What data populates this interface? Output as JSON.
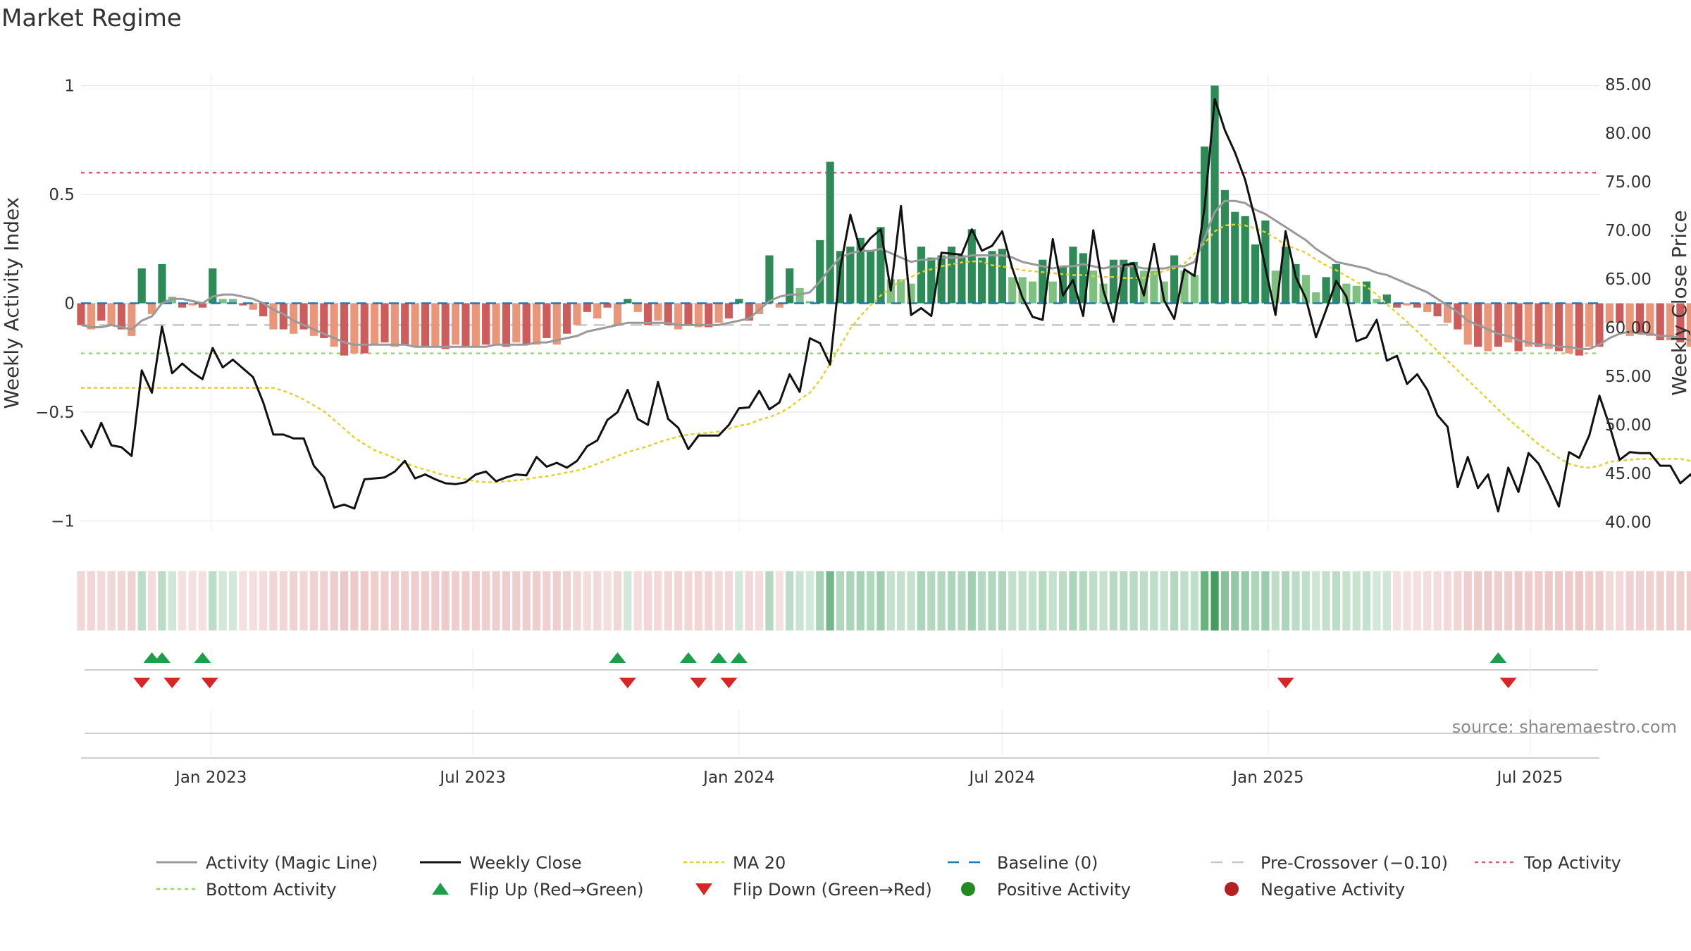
{
  "title": "Market Regime",
  "source": "source: sharemaestro.com",
  "colors": {
    "pos_dark": "#2e8b57",
    "pos_light": "#7fbf7f",
    "neg_dark": "#cd5c5c",
    "neg_light": "#e9967a",
    "magic_line": "#999999",
    "close_line": "#111111",
    "ma20": "#e6d030",
    "baseline": "#1f77b4",
    "pre_crossover": "#c8c8c8",
    "top_activity": "#e05a78",
    "bottom_activity": "#9ad66a",
    "flip_up": "#1f9e4a",
    "flip_down": "#d62728",
    "positive_dot": "#228b22",
    "negative_dot": "#b22222",
    "grid": "#e8e8e8"
  },
  "legend": [
    {
      "key": "magic",
      "label": "Activity (Magic Line)"
    },
    {
      "key": "close",
      "label": "Weekly Close"
    },
    {
      "key": "ma20",
      "label": "MA 20"
    },
    {
      "key": "baseline",
      "label": "Baseline (0)"
    },
    {
      "key": "pre",
      "label": "Pre-Crossover (−0.10)"
    },
    {
      "key": "top",
      "label": "Top Activity"
    },
    {
      "key": "bottom",
      "label": "Bottom Activity"
    },
    {
      "key": "flipup",
      "label": "Flip Up (Red→Green)"
    },
    {
      "key": "flipdown",
      "label": "Flip Down (Green→Red)"
    },
    {
      "key": "posdot",
      "label": "Positive Activity"
    },
    {
      "key": "negdot",
      "label": "Negative Activity"
    }
  ],
  "chart_data": {
    "type": "bar",
    "title": "Market Regime",
    "ylabel_left": "Weekly Activity Index",
    "ylabel_right": "Weekly Close Price",
    "ylim_left": [
      -1.05,
      1.05
    ],
    "ylim_right": [
      39.0,
      86.0
    ],
    "yticks_left": [
      1,
      0.5,
      0,
      -0.5,
      -1
    ],
    "yticks_left_labels": [
      "1",
      "0.5",
      "0",
      "−0.5",
      "−1"
    ],
    "yticks_right": [
      85,
      80,
      75,
      70,
      65,
      60,
      55,
      50,
      45,
      40
    ],
    "yticks_right_labels": [
      "85.00",
      "80.00",
      "75.00",
      "70.00",
      "65.00",
      "60.00",
      "55.00",
      "50.00",
      "45.00",
      "40.00"
    ],
    "x_range": [
      "2022-10-03",
      "2025-08-18"
    ],
    "x_ticks": [
      {
        "date": "2023-01-01",
        "label": "Jan 2023"
      },
      {
        "date": "2023-07-01",
        "label": "Jul 2023"
      },
      {
        "date": "2024-01-01",
        "label": "Jan 2024"
      },
      {
        "date": "2024-07-01",
        "label": "Jul 2024"
      },
      {
        "date": "2025-01-01",
        "label": "Jan 2025"
      },
      {
        "date": "2025-07-01",
        "label": "Jul 2025"
      }
    ],
    "first_week": "2022-10-03",
    "reference_lines": {
      "baseline": 0,
      "pre_crossover": -0.1,
      "top_activity": 0.6,
      "bottom_activity": -0.23
    },
    "activity": [
      -0.1,
      -0.12,
      -0.08,
      -0.1,
      -0.12,
      -0.15,
      0.16,
      -0.05,
      0.18,
      0.03,
      -0.02,
      -0.01,
      -0.02,
      0.16,
      0.02,
      0.02,
      -0.01,
      -0.03,
      -0.06,
      -0.12,
      -0.12,
      -0.14,
      -0.12,
      -0.15,
      -0.16,
      -0.2,
      -0.24,
      -0.23,
      -0.23,
      -0.19,
      -0.18,
      -0.2,
      -0.19,
      -0.2,
      -0.2,
      -0.2,
      -0.21,
      -0.19,
      -0.2,
      -0.2,
      -0.19,
      -0.19,
      -0.2,
      -0.18,
      -0.19,
      -0.19,
      -0.16,
      -0.19,
      -0.14,
      -0.1,
      -0.04,
      -0.07,
      -0.02,
      -0.1,
      0.02,
      -0.04,
      -0.1,
      -0.08,
      -0.1,
      -0.12,
      -0.1,
      -0.11,
      -0.11,
      -0.09,
      -0.07,
      0.02,
      -0.08,
      -0.05,
      0.22,
      -0.02,
      0.16,
      0.07,
      0.01,
      0.29,
      0.65,
      0.24,
      0.26,
      0.3,
      0.24,
      0.35,
      0.11,
      0.11,
      0.09,
      0.26,
      0.21,
      0.22,
      0.26,
      0.22,
      0.34,
      0.21,
      0.24,
      0.25,
      0.12,
      0.12,
      0.1,
      0.2,
      0.1,
      0.17,
      0.26,
      0.23,
      0.15,
      0.09,
      0.2,
      0.2,
      0.19,
      0.15,
      0.15,
      0.1,
      0.22,
      0.15,
      0.13,
      0.72,
      1.0,
      0.52,
      0.42,
      0.4,
      0.27,
      0.38,
      0.15,
      0.26,
      0.18,
      0.13,
      0.05,
      0.12,
      0.18,
      0.09,
      0.08,
      0.1,
      0.02,
      0.04,
      -0.02,
      -0.01,
      -0.02,
      -0.04,
      -0.06,
      -0.09,
      -0.12,
      -0.19,
      -0.2,
      -0.22,
      -0.2,
      -0.18,
      -0.22,
      -0.2,
      -0.2,
      -0.21,
      -0.22,
      -0.23,
      -0.24,
      -0.2,
      -0.2,
      -0.09,
      -0.09,
      -0.15,
      -0.14,
      -0.15,
      -0.17,
      -0.17,
      -0.18,
      -0.2,
      -0.19,
      -0.2,
      -0.19,
      -0.2,
      -0.22,
      -0.2
    ],
    "magic_line": [
      -0.1,
      -0.11,
      -0.11,
      -0.1,
      -0.11,
      -0.12,
      -0.08,
      -0.06,
      0.0,
      0.02,
      0.02,
      0.01,
      0.0,
      0.03,
      0.04,
      0.04,
      0.03,
      0.02,
      0.0,
      -0.03,
      -0.05,
      -0.08,
      -0.1,
      -0.12,
      -0.14,
      -0.16,
      -0.18,
      -0.19,
      -0.19,
      -0.19,
      -0.19,
      -0.19,
      -0.19,
      -0.2,
      -0.2,
      -0.2,
      -0.2,
      -0.2,
      -0.2,
      -0.2,
      -0.2,
      -0.19,
      -0.19,
      -0.19,
      -0.19,
      -0.18,
      -0.18,
      -0.17,
      -0.16,
      -0.15,
      -0.13,
      -0.12,
      -0.11,
      -0.1,
      -0.09,
      -0.09,
      -0.09,
      -0.09,
      -0.09,
      -0.1,
      -0.1,
      -0.1,
      -0.1,
      -0.1,
      -0.09,
      -0.08,
      -0.07,
      -0.03,
      0.01,
      0.03,
      0.04,
      0.04,
      0.05,
      0.1,
      0.16,
      0.21,
      0.23,
      0.24,
      0.24,
      0.25,
      0.23,
      0.21,
      0.19,
      0.2,
      0.2,
      0.21,
      0.21,
      0.21,
      0.22,
      0.22,
      0.22,
      0.22,
      0.21,
      0.19,
      0.18,
      0.17,
      0.16,
      0.17,
      0.17,
      0.18,
      0.17,
      0.16,
      0.17,
      0.17,
      0.17,
      0.16,
      0.16,
      0.16,
      0.17,
      0.17,
      0.19,
      0.3,
      0.42,
      0.47,
      0.47,
      0.46,
      0.43,
      0.41,
      0.38,
      0.35,
      0.32,
      0.29,
      0.25,
      0.22,
      0.19,
      0.18,
      0.17,
      0.16,
      0.14,
      0.13,
      0.11,
      0.09,
      0.07,
      0.05,
      0.02,
      -0.01,
      -0.04,
      -0.08,
      -0.1,
      -0.12,
      -0.14,
      -0.15,
      -0.17,
      -0.18,
      -0.19,
      -0.19,
      -0.2,
      -0.2,
      -0.21,
      -0.21,
      -0.19,
      -0.16,
      -0.14,
      -0.13,
      -0.14,
      -0.14,
      -0.15,
      -0.15,
      -0.16,
      -0.17,
      -0.18,
      -0.18,
      -0.19,
      -0.2,
      -0.2
    ],
    "close": [
      49.5,
      47.7,
      50.2,
      47.9,
      47.7,
      46.8,
      55.6,
      53.3,
      60.1,
      55.3,
      56.3,
      55.4,
      54.7,
      57.9,
      55.9,
      56.7,
      55.8,
      54.9,
      52.3,
      49.0,
      49.0,
      48.6,
      48.6,
      45.8,
      44.6,
      41.5,
      41.8,
      41.4,
      44.4,
      44.5,
      44.6,
      45.2,
      46.3,
      44.5,
      44.9,
      44.4,
      44.0,
      43.9,
      44.1,
      44.9,
      45.2,
      44.2,
      44.6,
      44.9,
      44.8,
      46.7,
      45.7,
      46.1,
      45.6,
      46.3,
      47.8,
      48.4,
      50.5,
      51.3,
      53.6,
      50.6,
      50.0,
      54.4,
      50.6,
      49.7,
      47.5,
      48.9,
      48.9,
      48.9,
      50.0,
      51.7,
      51.8,
      53.5,
      51.6,
      52.3,
      55.2,
      53.4,
      58.9,
      58.4,
      56.2,
      66.1,
      71.6,
      67.9,
      69.2,
      70.1,
      63.8,
      72.5,
      61.3,
      62.0,
      61.2,
      67.7,
      67.6,
      67.5,
      70.1,
      67.9,
      68.4,
      69.9,
      66.1,
      63.1,
      61.1,
      60.8,
      69.1,
      63.3,
      64.9,
      61.2,
      70.0,
      63.8,
      60.6,
      66.4,
      66.6,
      63.3,
      68.6,
      62.8,
      60.9,
      66.0,
      65.3,
      72.4,
      83.5,
      80.3,
      78.0,
      75.2,
      71.1,
      66.2,
      61.3,
      69.9,
      65.2,
      63.0,
      59.0,
      61.8,
      64.8,
      63.2,
      58.6,
      59.0,
      60.8,
      56.6,
      57.1,
      54.2,
      55.2,
      53.6,
      51.0,
      49.8,
      43.6,
      46.7,
      43.5,
      44.9,
      41.1,
      45.6,
      43.1,
      47.1,
      46.0,
      43.9,
      41.6,
      47.2,
      46.6,
      48.9,
      53.0,
      49.9,
      46.4,
      47.2,
      47.1,
      47.1,
      45.8,
      45.8,
      44.0,
      44.9,
      43.4,
      42.7,
      44.7,
      44.3,
      42.6,
      43.6
    ],
    "ma20": [
      53.8,
      53.8,
      53.8,
      53.8,
      53.8,
      53.8,
      53.8,
      53.8,
      53.8,
      53.8,
      53.8,
      53.8,
      53.8,
      53.8,
      53.8,
      53.8,
      53.8,
      53.8,
      53.8,
      53.8,
      53.5,
      53.1,
      52.6,
      52.0,
      51.4,
      50.5,
      49.6,
      48.7,
      48.0,
      47.4,
      47.0,
      46.6,
      46.1,
      45.7,
      45.4,
      45.1,
      44.8,
      44.6,
      44.4,
      44.2,
      44.1,
      44.1,
      44.2,
      44.3,
      44.4,
      44.6,
      44.7,
      44.9,
      45.1,
      45.3,
      45.6,
      46.0,
      46.4,
      46.8,
      47.2,
      47.5,
      47.8,
      48.2,
      48.5,
      48.8,
      49.0,
      49.1,
      49.2,
      49.3,
      49.6,
      49.9,
      50.1,
      50.5,
      50.8,
      51.2,
      51.8,
      52.6,
      53.3,
      54.6,
      56.3,
      58.1,
      59.9,
      61.2,
      62.3,
      63.3,
      64.1,
      64.8,
      65.2,
      65.7,
      66.0,
      66.3,
      66.5,
      66.7,
      66.8,
      66.8,
      66.4,
      66.3,
      66.1,
      65.9,
      65.8,
      65.7,
      65.6,
      65.5,
      65.4,
      65.4,
      65.3,
      65.2,
      65.2,
      65.1,
      65.1,
      65.1,
      65.5,
      65.8,
      66.1,
      66.6,
      67.6,
      68.7,
      69.9,
      70.5,
      70.6,
      70.5,
      70.2,
      69.8,
      69.2,
      68.5,
      68.1,
      67.7,
      67.0,
      66.4,
      65.9,
      65.3,
      64.7,
      64.2,
      63.4,
      62.4,
      61.5,
      60.6,
      59.6,
      58.6,
      57.6,
      56.6,
      55.6,
      54.6,
      53.6,
      52.6,
      51.6,
      50.6,
      49.7,
      48.9,
      48.0,
      47.3,
      46.6,
      46.0,
      45.7,
      45.6,
      45.8,
      46.2,
      46.3,
      46.4,
      46.5,
      46.5,
      46.5,
      46.5,
      46.5,
      46.3,
      46.2,
      46.0,
      45.8,
      45.5,
      45.1,
      44.9
    ],
    "flip_up": [
      "2022-11-21",
      "2022-11-28",
      "2022-12-26",
      "2023-10-09",
      "2023-11-27",
      "2023-12-18",
      "2024-01-01",
      "2025-06-09"
    ],
    "flip_down": [
      "2022-11-14",
      "2022-12-05",
      "2022-12-31",
      "2023-10-16",
      "2023-12-04",
      "2023-12-25",
      "2025-01-13",
      "2025-06-16"
    ]
  }
}
